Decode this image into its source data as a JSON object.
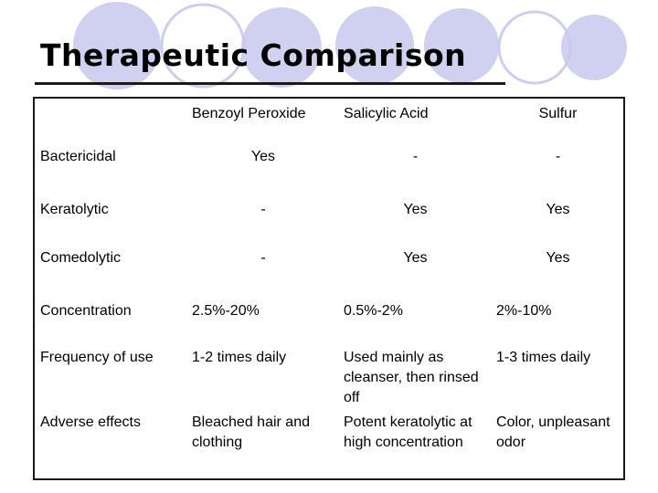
{
  "slide": {
    "title": "Therapeutic Comparison",
    "accent_color": "#c8c8ee"
  },
  "table": {
    "corner": "",
    "columns": [
      "Benzoyl Peroxide",
      "Salicylic Acid",
      "Sulfur"
    ],
    "rows": [
      {
        "label": "Bactericidal",
        "values": [
          "Yes",
          "-",
          "-"
        ]
      },
      {
        "label": "Keratolytic",
        "values": [
          "-",
          "Yes",
          "Yes"
        ]
      },
      {
        "label": "Comedolytic",
        "values": [
          "-",
          "Yes",
          "Yes"
        ]
      },
      {
        "label": "Concentration",
        "values": [
          "2.5%-20%",
          "0.5%-2%",
          "2%-10%"
        ]
      },
      {
        "label": "Frequency of use",
        "values": [
          "1-2 times daily",
          "Used mainly as cleanser, then rinsed off",
          "1-3 times daily"
        ]
      },
      {
        "label": "Adverse effects",
        "values": [
          "Bleached hair and clothing",
          "Potent keratolytic at high concentration",
          "Color, unpleasant odor"
        ]
      }
    ]
  }
}
